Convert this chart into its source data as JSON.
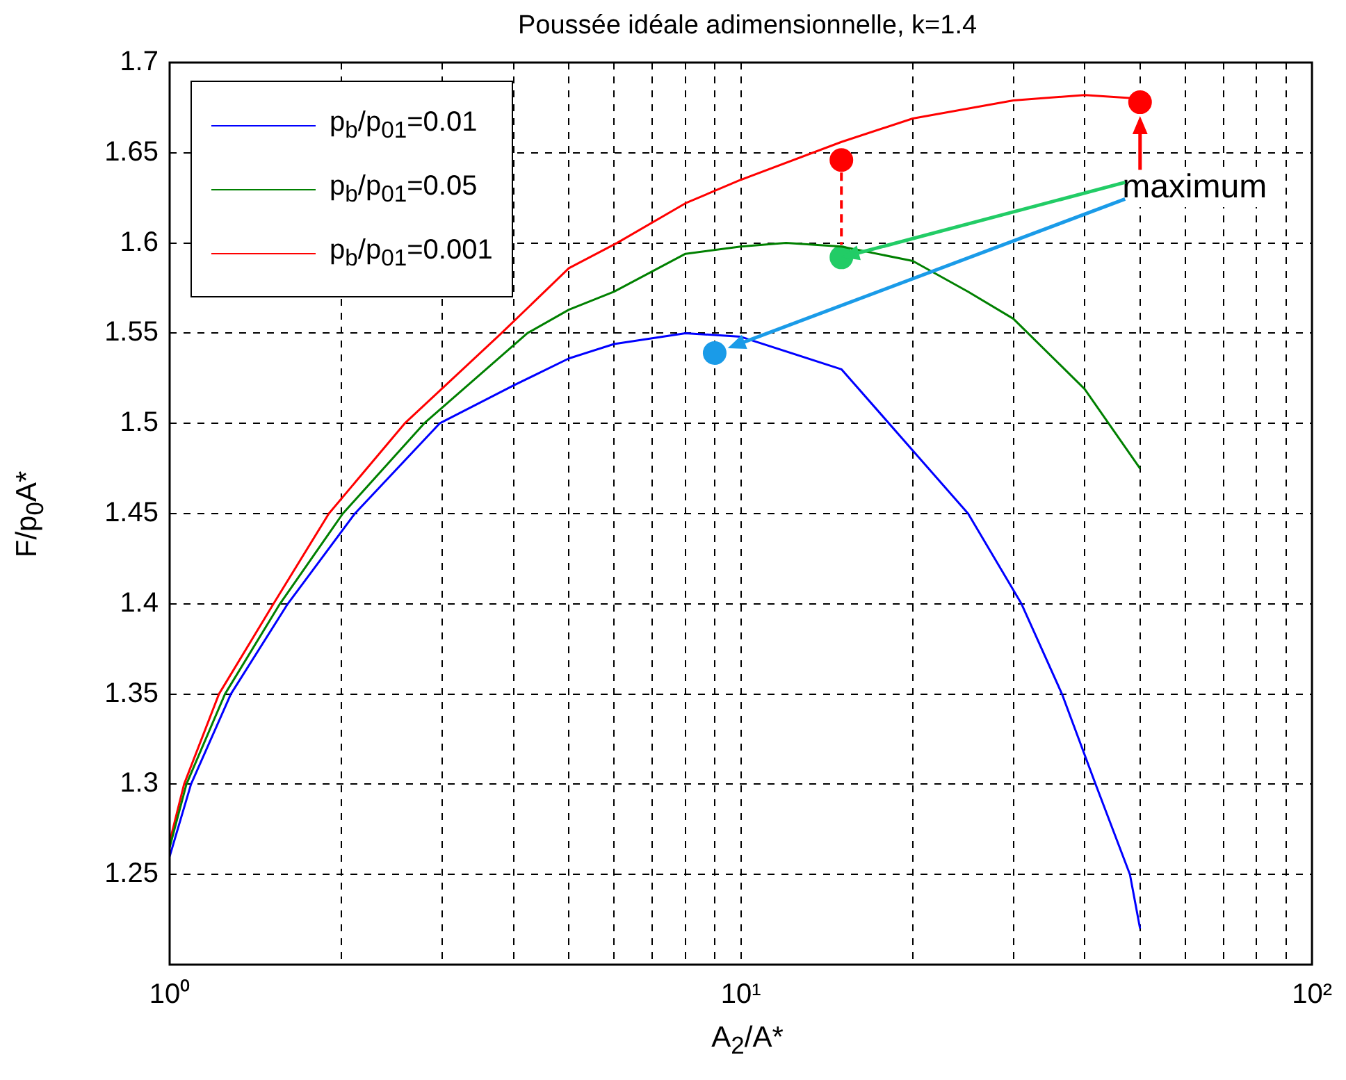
{
  "chart_data": {
    "type": "line",
    "title": "Poussée idéale adimensionnelle, k=1.4",
    "xlabel": "A$_{2}$/A*",
    "ylabel": "F/p$_{0}$A*",
    "log": "x",
    "grid": true,
    "legend": "top left",
    "xlim": [
      1,
      100
    ],
    "xticks": [
      {
        "value": 1,
        "label": "10⁰"
      },
      {
        "value": 2,
        "label": null
      },
      {
        "value": 3,
        "label": null
      },
      {
        "value": 4,
        "label": null
      },
      {
        "value": 5,
        "label": null
      },
      {
        "value": 6,
        "label": null
      },
      {
        "value": 7,
        "label": null
      },
      {
        "value": 8,
        "label": null
      },
      {
        "value": 9,
        "label": null
      },
      {
        "value": 10,
        "label": "10¹"
      },
      {
        "value": 20,
        "label": null
      },
      {
        "value": 30,
        "label": null
      },
      {
        "value": 40,
        "label": null
      },
      {
        "value": 50,
        "label": null
      },
      {
        "value": 60,
        "label": null
      },
      {
        "value": 70,
        "label": null
      },
      {
        "value": 80,
        "label": null
      },
      {
        "value": 90,
        "label": null
      },
      {
        "value": 100,
        "label": "10²"
      }
    ],
    "ylim": [
      1.2,
      1.7
    ],
    "yticks": [
      1.25,
      1.3,
      1.35,
      1.4,
      1.45,
      1.5,
      1.55,
      1.6,
      1.65,
      1.7
    ],
    "annotations": [
      {
        "text": "maximum",
        "x": 15,
        "y": 1.592
      }
    ],
    "series": [
      {
        "name": "p$_{b}$/p$_{01}$=0.01",
        "color": "#0000ff",
        "x": [
          1,
          1.09,
          1.28,
          1.61,
          2.11,
          2.97,
          4,
          5,
          6,
          8,
          10,
          15,
          20,
          25,
          31,
          36.5,
          41.8,
          48,
          50
        ],
        "values": [
          1.26,
          1.3,
          1.35,
          1.4,
          1.45,
          1.5,
          1.521,
          1.536,
          1.544,
          1.55,
          1.548,
          1.53,
          1.485,
          1.45,
          1.4,
          1.35,
          1.3,
          1.25,
          1.22
        ]
      },
      {
        "name": "p$_{b}$/p$_{01}$=0.05",
        "color": "#008000",
        "x": [
          1,
          1.07,
          1.25,
          1.56,
          2.01,
          2.79,
          4.23,
          5,
          6,
          8,
          10,
          12,
          15,
          20,
          25,
          30,
          40,
          50
        ],
        "values": [
          1.265,
          1.3,
          1.35,
          1.4,
          1.45,
          1.5,
          1.55,
          1.563,
          1.573,
          1.594,
          1.598,
          1.6,
          1.598,
          1.59,
          1.573,
          1.558,
          1.519,
          1.475
        ]
      },
      {
        "name": "p$_{b}$/p$_{01}$=0.001",
        "color": "#ff0000",
        "x": [
          1,
          1.06,
          1.22,
          1.52,
          1.9,
          2.58,
          3.81,
          5,
          6.07,
          8,
          10,
          15,
          20,
          30,
          40,
          50
        ],
        "values": [
          1.268,
          1.3,
          1.35,
          1.4,
          1.45,
          1.5,
          1.55,
          1.586,
          1.6,
          1.622,
          1.635,
          1.656,
          1.669,
          1.679,
          1.682,
          1.68
        ]
      },
      {
        "type": "scatter",
        "marker": "circle",
        "color": "#ff0000",
        "x": [
          50,
          15
        ],
        "values": [
          1.678,
          1.646
        ]
      },
      {
        "type": "scatter",
        "marker": "circle",
        "color": "#22cc66",
        "x": [
          15
        ],
        "values": [
          1.592
        ]
      },
      {
        "type": "scatter",
        "marker": "circle",
        "color": "#1a9be8",
        "x": [
          9
        ],
        "values": [
          1.539
        ]
      }
    ]
  }
}
